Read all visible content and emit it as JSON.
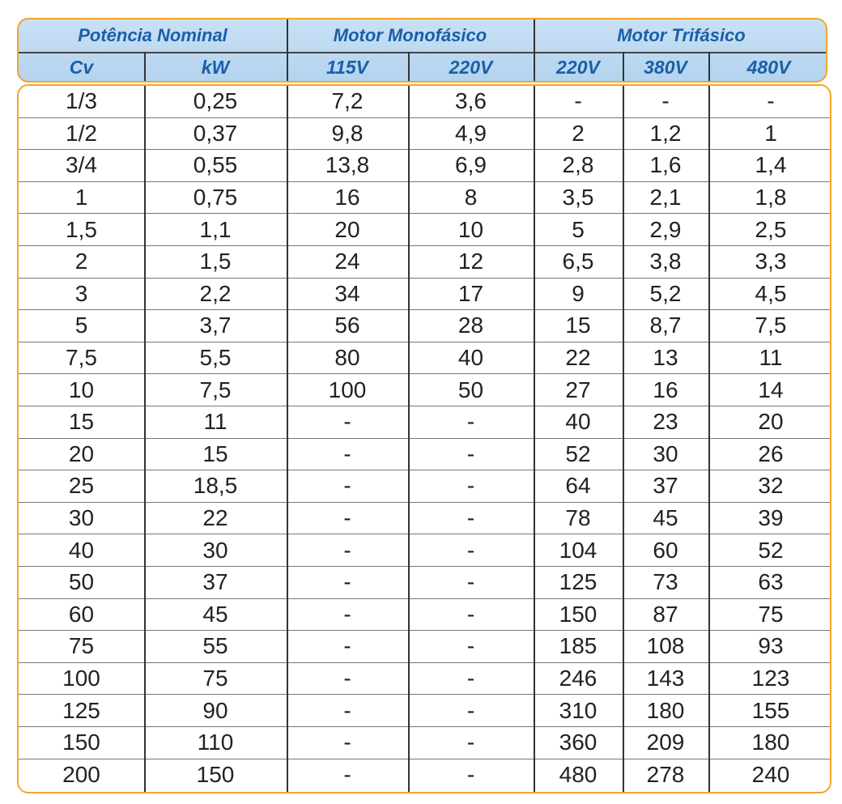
{
  "header": {
    "groups": [
      "Potência Nominal",
      "Motor Monofásico",
      "Motor Trifásico"
    ],
    "columns": [
      "Cv",
      "kW",
      "115V",
      "220V",
      "220V",
      "380V",
      "480V"
    ]
  },
  "rows": [
    [
      "1/3",
      "0,25",
      "7,2",
      "3,6",
      "-",
      "-",
      "-"
    ],
    [
      "1/2",
      "0,37",
      "9,8",
      "4,9",
      "2",
      "1,2",
      "1"
    ],
    [
      "3/4",
      "0,55",
      "13,8",
      "6,9",
      "2,8",
      "1,6",
      "1,4"
    ],
    [
      "1",
      "0,75",
      "16",
      "8",
      "3,5",
      "2,1",
      "1,8"
    ],
    [
      "1,5",
      "1,1",
      "20",
      "10",
      "5",
      "2,9",
      "2,5"
    ],
    [
      "2",
      "1,5",
      "24",
      "12",
      "6,5",
      "3,8",
      "3,3"
    ],
    [
      "3",
      "2,2",
      "34",
      "17",
      "9",
      "5,2",
      "4,5"
    ],
    [
      "5",
      "3,7",
      "56",
      "28",
      "15",
      "8,7",
      "7,5"
    ],
    [
      "7,5",
      "5,5",
      "80",
      "40",
      "22",
      "13",
      "11"
    ],
    [
      "10",
      "7,5",
      "100",
      "50",
      "27",
      "16",
      "14"
    ],
    [
      "15",
      "11",
      "-",
      "-",
      "40",
      "23",
      "20"
    ],
    [
      "20",
      "15",
      "-",
      "-",
      "52",
      "30",
      "26"
    ],
    [
      "25",
      "18,5",
      "-",
      "-",
      "64",
      "37",
      "32"
    ],
    [
      "30",
      "22",
      "-",
      "-",
      "78",
      "45",
      "39"
    ],
    [
      "40",
      "30",
      "-",
      "-",
      "104",
      "60",
      "52"
    ],
    [
      "50",
      "37",
      "-",
      "-",
      "125",
      "73",
      "63"
    ],
    [
      "60",
      "45",
      "-",
      "-",
      "150",
      "87",
      "75"
    ],
    [
      "75",
      "55",
      "-",
      "-",
      "185",
      "108",
      "93"
    ],
    [
      "100",
      "75",
      "-",
      "-",
      "246",
      "143",
      "123"
    ],
    [
      "125",
      "90",
      "-",
      "-",
      "310",
      "180",
      "155"
    ],
    [
      "150",
      "110",
      "-",
      "-",
      "360",
      "209",
      "180"
    ],
    [
      "200",
      "150",
      "-",
      "-",
      "480",
      "278",
      "240"
    ]
  ],
  "colors": {
    "border": "#f4a62a",
    "header_bg": "#b4d3ee",
    "header_text": "#1a5fa8",
    "text": "#222222"
  }
}
